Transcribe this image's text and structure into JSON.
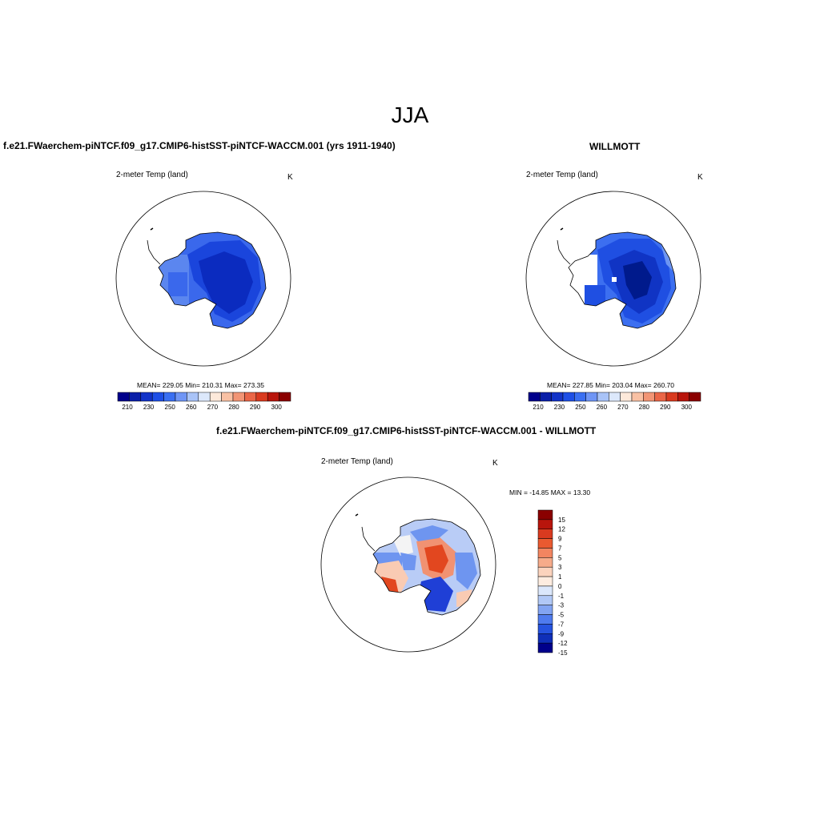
{
  "figure": {
    "title": "JJA"
  },
  "panels": {
    "model": {
      "title": "f.e21.FWaerchem-piNTCF.f09_g17.CMIP6-histSST-piNTCF-WACCM.001 (yrs 1911-1940)",
      "variable": "2-meter Temp (land)",
      "units": "K",
      "stats": "MEAN= 229.05  Min= 210.31  Max= 273.35",
      "colorbar_labels": [
        "210",
        "230",
        "250",
        "260",
        "270",
        "280",
        "290",
        "300"
      ]
    },
    "obs": {
      "title": "WILLMOTT",
      "variable": "2-meter Temp (land)",
      "units": "K",
      "stats": "MEAN= 227.85  Min= 203.04  Max= 260.70",
      "colorbar_labels": [
        "210",
        "230",
        "250",
        "260",
        "270",
        "280",
        "290",
        "300"
      ]
    },
    "diff": {
      "title": "f.e21.FWaerchem-piNTCF.f09_g17.CMIP6-histSST-piNTCF-WACCM.001 - WILLMOTT",
      "variable": "2-meter Temp (land)",
      "units": "K",
      "stats": "MIN = -14.85 MAX =  13.30",
      "colorbar_labels": [
        "15",
        "12",
        "9",
        "7",
        "5",
        "3",
        "1",
        "0",
        "-1",
        "-3",
        "-5",
        "-7",
        "-9",
        "-12",
        "-15"
      ]
    }
  },
  "colors": {
    "abs_scale": [
      "#00008b",
      "#0a1fa8",
      "#1233c8",
      "#1e4fe6",
      "#3a6ff2",
      "#6f95f5",
      "#a9c3f7",
      "#dce8fb",
      "#fde9da",
      "#f9c1a4",
      "#f29575",
      "#ea6647",
      "#d93a1f",
      "#b8150c",
      "#8a0000"
    ],
    "diff_scale": [
      "#8a0000",
      "#b8150c",
      "#d93a1f",
      "#ea5a30",
      "#f28560",
      "#f6ab8a",
      "#fbd3bd",
      "#fdece0",
      "#dbe7fb",
      "#b1c8f6",
      "#82a4f2",
      "#4f7bee",
      "#2653df",
      "#0f2fb8",
      "#00008b"
    ],
    "model_map": {
      "cold_core": "#0b2bbf",
      "interior": "#1a45dc",
      "coast": "#3a68ec",
      "peninsula": "#5b86ef"
    },
    "obs_map": {
      "cold_core": "#001a8c",
      "mid": "#1034c4",
      "interior": "#1f4fe2",
      "coast": "#3c6ff0",
      "warm_edge": "#6d95f2"
    },
    "diff_map": {
      "warm_strong": "#e2471f",
      "warm": "#f19272",
      "warm_weak": "#f9cbb3",
      "neutral": "#f4f4f4",
      "cool_weak": "#b9ccf6",
      "cool": "#6e95f0",
      "cool_strong": "#1f3fd6"
    }
  }
}
